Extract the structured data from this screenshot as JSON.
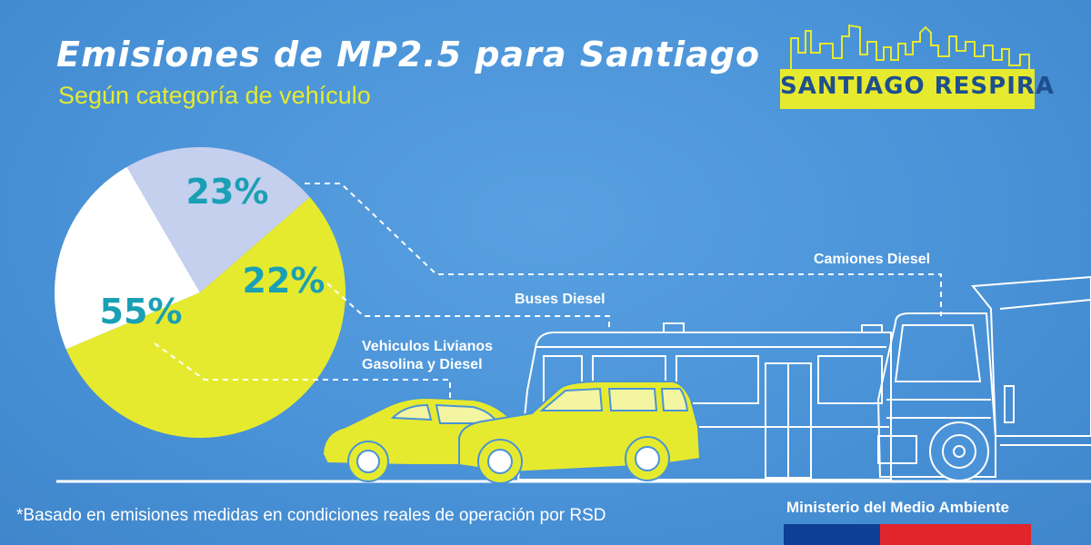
{
  "header": {
    "title": "Emisiones de MP2.5 para Santiago",
    "subtitle": "Según categoría de vehículo"
  },
  "logo": {
    "text": "SANTIAGO RESPIRA"
  },
  "footer": {
    "note": "*Basado en emisiones medidas en condiciones reales de operación por RSD",
    "ministry": "Ministerio del Medio Ambiente"
  },
  "chart_data": {
    "type": "pie",
    "title": "Emisiones de MP2.5 para Santiago",
    "subtitle": "Según categoría de vehículo",
    "slices": [
      {
        "label": "Camiones Diesel",
        "value": 23,
        "display": "23%",
        "color": "#ffffff"
      },
      {
        "label": "Buses Diesel",
        "value": 22,
        "display": "22%",
        "color": "#c5cfee"
      },
      {
        "label": "Vehiculos Livianos Gasolina y Diesel",
        "label_lines": [
          "Vehiculos Livianos",
          "Gasolina y Diesel"
        ],
        "value": 55,
        "display": "55%",
        "color": "#e6ea2e"
      }
    ],
    "start_angle_deg": 247,
    "percent_color": "#1aa0b4"
  },
  "colors": {
    "background": "#4a93d8",
    "accent_yellow": "#e6ea2e",
    "outline": "#ffffff",
    "flag_blue": "#0d3f96",
    "flag_red": "#e2242b"
  }
}
